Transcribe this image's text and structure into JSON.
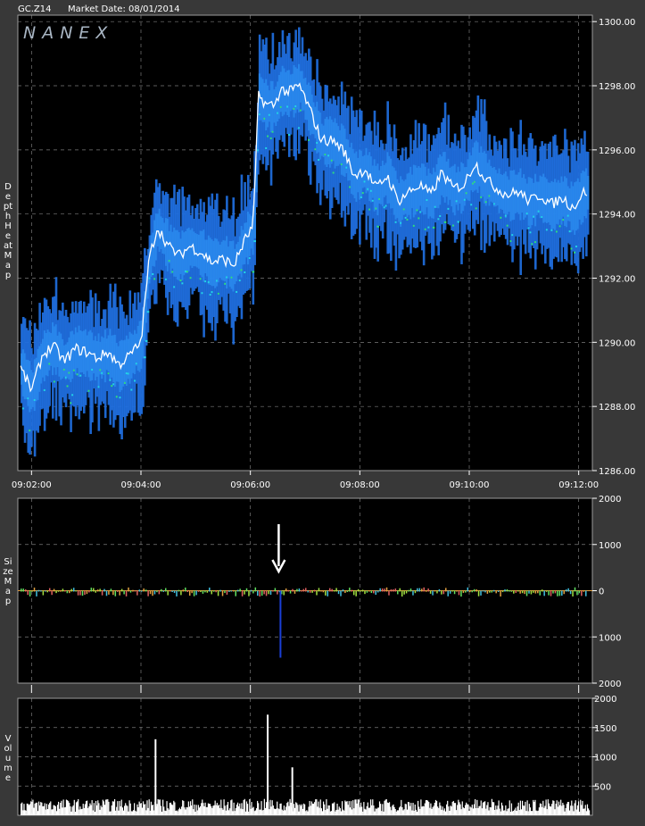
{
  "header": {
    "symbol": "GC.Z14",
    "market_date": "Market Date: 08/01/2014"
  },
  "logo_text": "NANEX",
  "side_labels": {
    "depth": "Depth Heat Map",
    "size": "Size Map",
    "volume": "Volume"
  },
  "colors": {
    "background": "#383838",
    "plot_bg": "#000000",
    "grid": "#7a7a7a",
    "price_line": "#ffffff",
    "depth_blue": "#1f6fe0",
    "depth_cyan": "#22d6e6",
    "depth_green": "#2fe07a",
    "size_spike": "#1a3fd6",
    "arrow": "#ffffff"
  },
  "chart_data": [
    {
      "type": "heatmap",
      "name": "depth",
      "xlabel": "",
      "ylabel": "",
      "x_ticks": [
        "09:02:00",
        "09:04:00",
        "09:06:00",
        "09:08:00",
        "09:10:00",
        "09:12:00"
      ],
      "y_ticks": [
        "1300.00",
        "1298.00",
        "1296.00",
        "1294.00",
        "1292.00",
        "1290.00",
        "1288.00",
        "1286.00"
      ],
      "ylim": [
        1286,
        1300.2
      ],
      "xlim_minutes": [
        1.75,
        12.25
      ],
      "grid": true,
      "price_series": {
        "x_minutes": [
          1.8,
          2.0,
          2.2,
          2.4,
          2.6,
          2.8,
          3.0,
          3.2,
          3.4,
          3.6,
          3.8,
          4.0,
          4.15,
          4.3,
          4.5,
          4.7,
          4.9,
          5.1,
          5.3,
          5.5,
          5.7,
          5.9,
          6.05,
          6.15,
          6.3,
          6.45,
          6.55,
          6.7,
          6.9,
          7.1,
          7.3,
          7.5,
          7.7,
          7.9,
          8.1,
          8.3,
          8.5,
          8.7,
          8.9,
          9.1,
          9.3,
          9.5,
          9.7,
          9.9,
          10.1,
          10.3,
          10.5,
          10.7,
          10.9,
          11.1,
          11.3,
          11.5,
          11.7,
          11.9,
          12.1
        ],
        "y": [
          1289.2,
          1288.5,
          1289.6,
          1289.9,
          1289.4,
          1289.8,
          1289.7,
          1289.5,
          1289.7,
          1289.3,
          1289.6,
          1290.0,
          1292.6,
          1293.6,
          1293.0,
          1292.7,
          1293.0,
          1292.8,
          1292.5,
          1292.6,
          1292.4,
          1293.2,
          1293.6,
          1297.7,
          1297.4,
          1297.4,
          1297.9,
          1297.8,
          1298.0,
          1297.2,
          1296.3,
          1296.3,
          1296.0,
          1295.2,
          1295.4,
          1294.8,
          1295.2,
          1294.4,
          1294.7,
          1294.9,
          1294.6,
          1295.3,
          1294.8,
          1294.9,
          1295.6,
          1295.1,
          1294.8,
          1294.6,
          1294.7,
          1294.4,
          1294.6,
          1294.3,
          1294.5,
          1294.2,
          1294.7
        ]
      }
    },
    {
      "type": "bar",
      "name": "size",
      "xlabel": "",
      "ylabel": "",
      "y_ticks": [
        "2000",
        "1000",
        "0",
        "1000",
        "2000"
      ],
      "ylim": [
        -2000,
        2000
      ],
      "grid": true,
      "spike": {
        "x_minutes": 6.55,
        "value": -1450
      },
      "annotation": "down-arrow"
    },
    {
      "type": "bar",
      "name": "volume",
      "xlabel": "",
      "ylabel": "",
      "y_ticks": [
        "2000",
        "1500",
        "1000",
        "500"
      ],
      "ylim": [
        0,
        2000
      ],
      "grid": true,
      "spikes": [
        {
          "x_minutes": 4.25,
          "value": 1300
        },
        {
          "x_minutes": 6.3,
          "value": 1720
        },
        {
          "x_minutes": 6.75,
          "value": 820
        }
      ]
    }
  ]
}
